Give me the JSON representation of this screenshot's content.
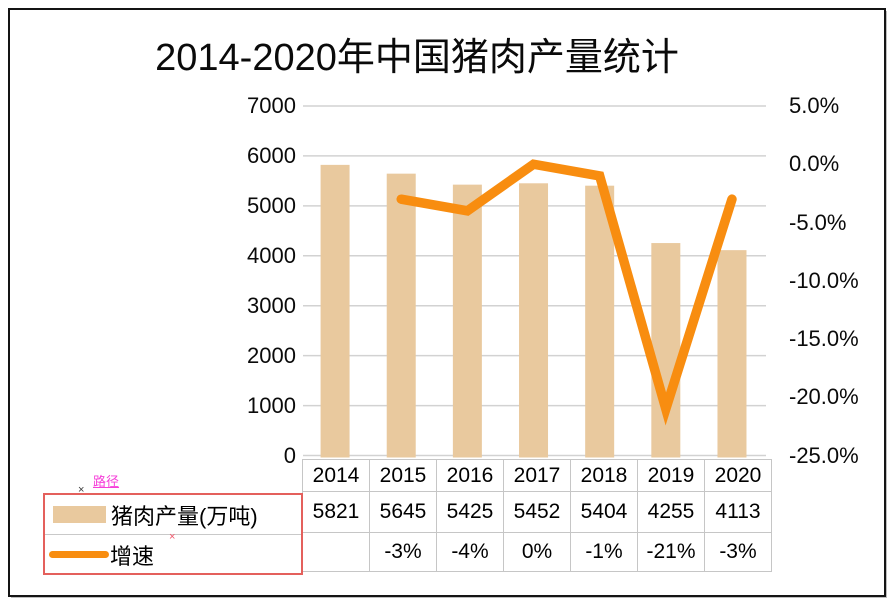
{
  "title": "2014-2020年中国猪肉产量统计",
  "annotations": {
    "path_label": "路径",
    "marker1": "×",
    "marker2": "×"
  },
  "colors": {
    "bar": "#e9c99e",
    "line": "#f88d10",
    "grid": "#d2d2d2",
    "table_border": "#c6c6c6",
    "legend_border": "#e4605c",
    "annotation_pink": "#f63fd9",
    "frame": "#141414"
  },
  "chart_data": {
    "type": "bar+line-combo",
    "title": "2014-2020年中国猪肉产量统计",
    "categories": [
      "2014",
      "2015",
      "2016",
      "2017",
      "2018",
      "2019",
      "2020"
    ],
    "series": [
      {
        "name": "猪肉产量(万吨)",
        "type": "bar",
        "axis": "left",
        "values": [
          5821,
          5645,
          5425,
          5452,
          5404,
          4255,
          4113
        ],
        "display": [
          "5821",
          "5645",
          "5425",
          "5452",
          "5404",
          "4255",
          "4113"
        ]
      },
      {
        "name": "增速",
        "type": "line",
        "axis": "right",
        "values": [
          null,
          -3,
          -4,
          0,
          -1,
          -21,
          -3
        ],
        "display": [
          "",
          "-3%",
          "-4%",
          "0%",
          "-1%",
          "-21%",
          "-3%"
        ]
      }
    ],
    "left_axis": {
      "min": 0,
      "max": 7000,
      "ticks": [
        "7000",
        "6000",
        "5000",
        "4000",
        "3000",
        "2000",
        "1000",
        "0"
      ]
    },
    "right_axis": {
      "min": -25,
      "max": 5,
      "ticks": [
        "5.0%",
        "0.0%",
        "-5.0%",
        "-10.0%",
        "-15.0%",
        "-20.0%",
        "-25.0%"
      ]
    },
    "grid": true,
    "legend_position": "bottom-left",
    "data_table_shown": true
  }
}
